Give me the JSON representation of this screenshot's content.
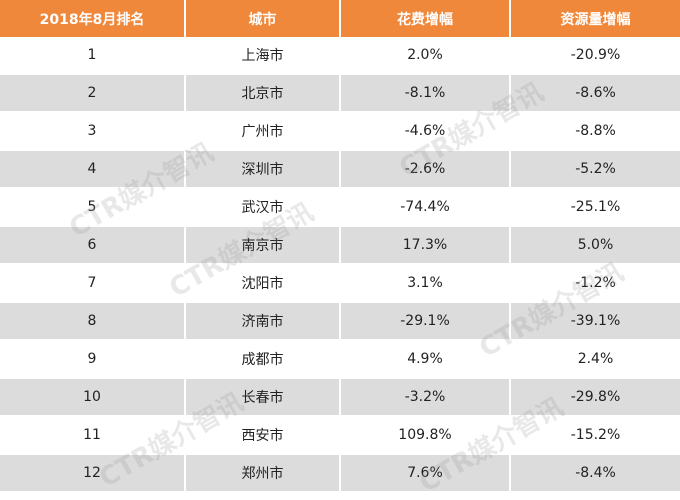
{
  "table": {
    "headers": [
      "2018年8月排名",
      "城市",
      "花费增幅",
      "资源量增幅"
    ],
    "rows": [
      {
        "rank": "1",
        "city": "上海市",
        "spend": "2.0%",
        "resource": "-20.9%"
      },
      {
        "rank": "2",
        "city": "北京市",
        "spend": "-8.1%",
        "resource": "-8.6%"
      },
      {
        "rank": "3",
        "city": "广州市",
        "spend": "-4.6%",
        "resource": "-8.8%"
      },
      {
        "rank": "4",
        "city": "深圳市",
        "spend": "-2.6%",
        "resource": "-5.2%"
      },
      {
        "rank": "5",
        "city": "武汉市",
        "spend": "-74.4%",
        "resource": "-25.1%"
      },
      {
        "rank": "6",
        "city": "南京市",
        "spend": "17.3%",
        "resource": "5.0%"
      },
      {
        "rank": "7",
        "city": "沈阳市",
        "spend": "3.1%",
        "resource": "-1.2%"
      },
      {
        "rank": "8",
        "city": "济南市",
        "spend": "-29.1%",
        "resource": "-39.1%"
      },
      {
        "rank": "9",
        "city": "成都市",
        "spend": "4.9%",
        "resource": "2.4%"
      },
      {
        "rank": "10",
        "city": "长春市",
        "spend": "-3.2%",
        "resource": "-29.8%"
      },
      {
        "rank": "11",
        "city": "西安市",
        "spend": "109.8%",
        "resource": "-15.2%"
      },
      {
        "rank": "12",
        "city": "郑州市",
        "spend": "7.6%",
        "resource": "-8.4%"
      }
    ]
  },
  "watermark": {
    "text": "CTR媒介智讯"
  },
  "colors": {
    "header_bg": "#f0883c",
    "stripe_bg": "#dcdcdc"
  }
}
